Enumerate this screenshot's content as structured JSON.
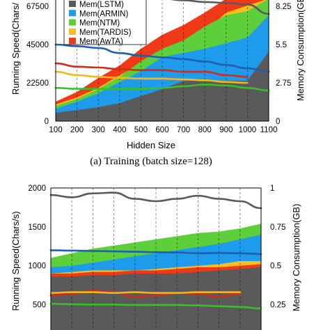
{
  "caption_top": "(a) Training (batch size=128)",
  "colors": {
    "mem_lstm": "#5a5a5a",
    "mem_armin": "#1e9bea",
    "mem_ntm": "#5ccf3a",
    "mem_tardis": "#fbbd1f",
    "mem_awta": "#f03a17",
    "speed_lstm": "#5a5a5a",
    "speed_armin": "#1f5fb0",
    "speed_ntm": "#3bbf2a",
    "speed_tardis": "#f3b81a",
    "speed_awta": "#d42a1a"
  },
  "chart_data": [
    {
      "type": "area",
      "xlabel": "Hidden Size",
      "ylabel": "Running Speed(Chars/",
      "y2label": "Memory Consumption(GB",
      "x_ticks": [
        "100",
        "200",
        "300",
        "400",
        "500",
        "600",
        "700",
        "800",
        "900",
        "1000",
        "1100"
      ],
      "y_ticks": [
        "0",
        "22500",
        "45000",
        "67500"
      ],
      "y2_ticks": [
        "0",
        "2.75",
        "5.5",
        "8.25"
      ],
      "xlim": [
        100,
        1100
      ],
      "ylim": [
        0,
        72000
      ],
      "y2lim": [
        0,
        8.8
      ],
      "legend": [
        "Mem(LSTM)",
        "Mem(ARMIN)",
        "Mem(NTM)",
        "Mem(TARDIS)",
        "Mem(AwTA)"
      ],
      "legend_position": "top-left",
      "grid": "vertical-dashed",
      "x": [
        100,
        200,
        300,
        400,
        500,
        600,
        700,
        800,
        900,
        1000,
        1100
      ],
      "memory_series": [
        {
          "name": "Mem(LSTM)",
          "values": [
            0.6,
            0.8,
            1.0,
            1.3,
            1.8,
            2.3,
            2.9,
            2.9,
            2.9,
            2.9,
            5.0
          ]
        },
        {
          "name": "Mem(ARMIN)",
          "values": [
            0.9,
            1.4,
            2.0,
            2.8,
            3.6,
            4.6,
            4.9,
            5.2,
            5.6,
            6.0,
            7.6
          ]
        },
        {
          "name": "Mem(NTM)",
          "values": [
            1.1,
            1.6,
            2.3,
            3.2,
            4.3,
            5.2,
            5.8,
            6.8,
            7.6,
            7.9,
            9.0
          ]
        },
        {
          "name": "Mem(TARDIS)",
          "values": [
            1.2,
            1.7,
            2.4,
            3.3,
            4.1,
            5.1,
            5.6,
            6.4,
            7.8,
            8.3,
            9.0
          ]
        },
        {
          "name": "Mem(AwTA)",
          "values": [
            1.4,
            2.1,
            3.1,
            4.0,
            5.2,
            6.2,
            6.9,
            7.8,
            9.0,
            9.0,
            9.0
          ]
        }
      ],
      "speed_series": [
        {
          "key": "speed_lstm",
          "values": [
            76000,
            75000,
            74000,
            73000,
            72500,
            72000,
            71000,
            70000,
            69500,
            68500,
            63000
          ]
        },
        {
          "key": "speed_armin",
          "values": [
            45000,
            44000,
            43000,
            40000,
            38500,
            37500,
            36500,
            35000,
            33000,
            31000,
            29000
          ]
        },
        {
          "key": "speed_awta",
          "values": [
            34000,
            32000,
            31500,
            30500,
            30000,
            30000,
            29000,
            29000,
            27000,
            26000,
            null
          ]
        },
        {
          "key": "speed_tardis",
          "values": [
            29000,
            27000,
            26000,
            25500,
            25000,
            25000,
            24500,
            24000,
            23000,
            22500,
            null
          ]
        },
        {
          "key": "speed_ntm",
          "values": [
            19500,
            19000,
            19000,
            19000,
            19000,
            19500,
            20500,
            21500,
            21000,
            19500,
            18000
          ]
        }
      ]
    },
    {
      "type": "area",
      "xlabel": "",
      "ylabel": "Running Speed(Chars/s)",
      "y2label": "Memory Consumption(GB)",
      "x_ticks": [],
      "y_ticks": [
        "500",
        "1000",
        "1500",
        "2000"
      ],
      "y2_ticks": [
        "0.25",
        "0.5",
        "0.75",
        "1"
      ],
      "xlim": [
        100,
        1100
      ],
      "ylim": [
        120,
        2000
      ],
      "y2lim": [
        0.06,
        1.0
      ],
      "grid": "vertical-dashed",
      "x": [
        100,
        200,
        300,
        400,
        500,
        600,
        700,
        800,
        900,
        1000,
        1100
      ],
      "memory_series": [
        {
          "name": "Mem(LSTM)",
          "values": [
            0.43,
            0.43,
            0.44,
            0.44,
            0.45,
            0.45,
            0.45,
            0.46,
            0.47,
            0.48,
            0.49
          ]
        },
        {
          "name": "Mem(ARMIN)",
          "values": [
            0.49,
            0.5,
            0.52,
            0.54,
            0.56,
            0.58,
            0.6,
            0.62,
            0.64,
            0.67,
            0.7
          ]
        },
        {
          "name": "Mem(NTM)",
          "values": [
            0.55,
            0.58,
            0.61,
            0.63,
            0.65,
            0.67,
            0.69,
            0.71,
            0.72,
            0.74,
            0.77
          ]
        },
        {
          "name": "Mem(TARDIS)",
          "values": [
            0.45,
            0.46,
            0.47,
            0.47,
            0.47,
            0.48,
            0.49,
            0.5,
            0.51,
            0.53,
            0.53
          ]
        },
        {
          "name": "Mem(AwTA)",
          "values": [
            0.45,
            0.45,
            0.46,
            0.46,
            0.47,
            0.47,
            0.48,
            0.49,
            0.49,
            0.5,
            0.51
          ]
        }
      ],
      "speed_series": [
        {
          "key": "speed_lstm",
          "values": [
            1910,
            1880,
            1930,
            1940,
            1860,
            1830,
            1860,
            1900,
            1860,
            1830,
            1740
          ]
        },
        {
          "key": "speed_armin",
          "values": [
            1200,
            1195,
            1190,
            1185,
            1180,
            1175,
            1170,
            1160,
            1165,
            1160,
            1150
          ]
        },
        {
          "key": "speed_awta",
          "values": [
            620,
            640,
            680,
            660,
            600,
            620,
            650,
            640,
            600,
            640,
            null
          ]
        },
        {
          "key": "speed_tardis",
          "values": [
            650,
            660,
            660,
            650,
            660,
            650,
            650,
            660,
            660,
            660,
            null
          ]
        },
        {
          "key": "speed_ntm",
          "values": [
            510,
            505,
            500,
            500,
            495,
            495,
            495,
            490,
            480,
            470,
            450
          ]
        }
      ]
    }
  ]
}
